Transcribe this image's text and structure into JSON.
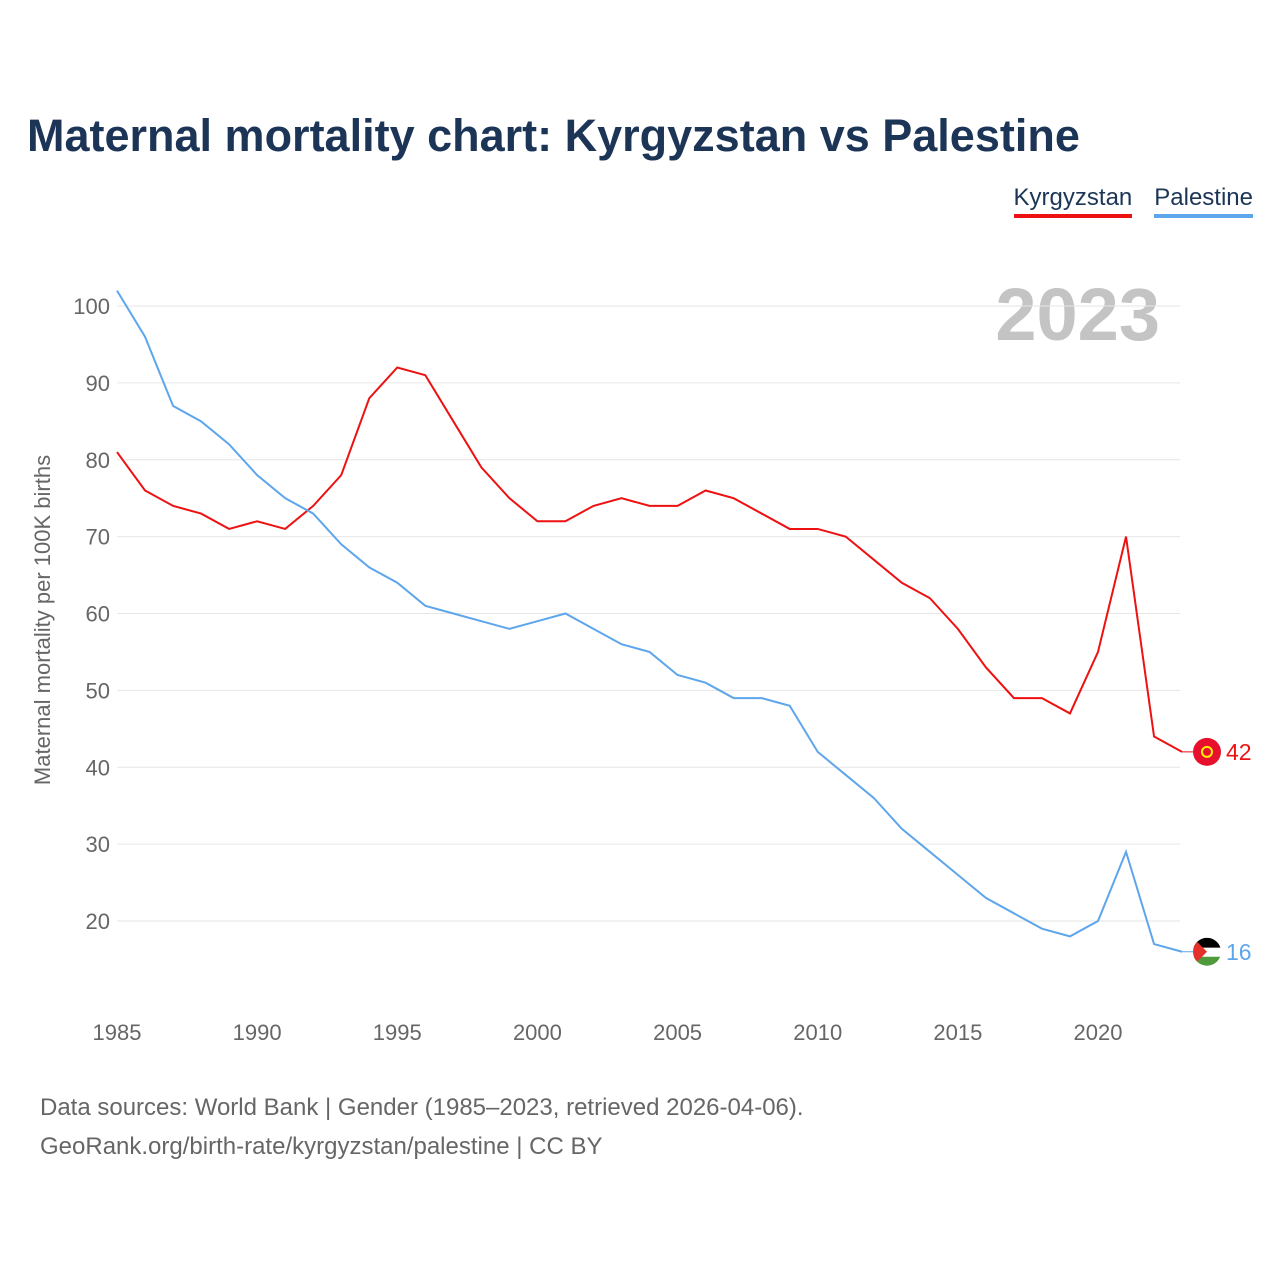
{
  "chart_data": {
    "type": "line",
    "title": "Maternal mortality chart: Kyrgyzstan vs Palestine",
    "xlabel": "",
    "ylabel": "Maternal mortality per 100K births",
    "xlim": [
      1985,
      2023
    ],
    "ylim": [
      10,
      102
    ],
    "x_ticks": [
      1985,
      1990,
      1995,
      2000,
      2005,
      2010,
      2015,
      2020
    ],
    "y_ticks": [
      20,
      30,
      40,
      50,
      60,
      70,
      80,
      90,
      100
    ],
    "grid": true,
    "legend_position": "top-right",
    "year_label": "2023",
    "x": [
      1985,
      1986,
      1987,
      1988,
      1989,
      1990,
      1991,
      1992,
      1993,
      1994,
      1995,
      1996,
      1997,
      1998,
      1999,
      2000,
      2001,
      2002,
      2003,
      2004,
      2005,
      2006,
      2007,
      2008,
      2009,
      2010,
      2011,
      2012,
      2013,
      2014,
      2015,
      2016,
      2017,
      2018,
      2019,
      2020,
      2021,
      2022,
      2023
    ],
    "series": [
      {
        "name": "Kyrgyzstan",
        "color": "#ee1111",
        "end_label": "42",
        "values": [
          81,
          76,
          74,
          73,
          71,
          72,
          71,
          74,
          78,
          88,
          92,
          91,
          85,
          79,
          75,
          72,
          72,
          74,
          75,
          74,
          74,
          76,
          75,
          73,
          71,
          71,
          70,
          67,
          64,
          62,
          58,
          53,
          49,
          49,
          47,
          55,
          70,
          44,
          42
        ]
      },
      {
        "name": "Palestine",
        "color": "#5ea6ec",
        "end_label": "16",
        "values": [
          102,
          96,
          87,
          85,
          82,
          78,
          75,
          73,
          69,
          66,
          64,
          61,
          60,
          59,
          58,
          59,
          60,
          58,
          56,
          55,
          52,
          51,
          49,
          49,
          48,
          42,
          39,
          36,
          32,
          29,
          26,
          23,
          21,
          19,
          18,
          20,
          29,
          17,
          16
        ]
      }
    ]
  },
  "source": {
    "line1": "Data sources: World Bank | Gender (1985–2023, retrieved 2026-04-06).",
    "line2": "GeoRank.org/birth-rate/kyrgyzstan/palestine | CC BY"
  }
}
